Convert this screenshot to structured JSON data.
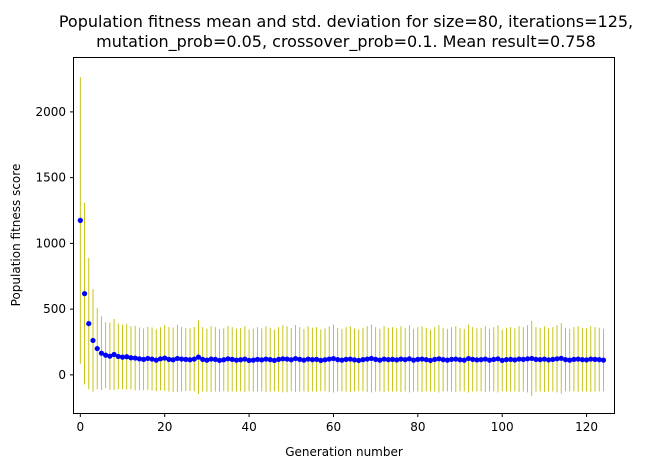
{
  "chart_data": {
    "type": "scatter",
    "title_lines": [
      "Population fitness mean and std. deviation for size=80, iterations=125,",
      "mutation_prob=0.05, crossover_prob=0.1. Mean result=0.758"
    ],
    "xlabel": "Generation number",
    "ylabel": "Population fitness score",
    "xlim": [
      -1.5,
      126.5
    ],
    "ylim": [
      -290,
      2410
    ],
    "xticks": [
      0,
      20,
      40,
      60,
      80,
      100,
      120
    ],
    "yticks": [
      0,
      500,
      1000,
      1500,
      2000
    ],
    "grid": false,
    "legend": "none",
    "colors": {
      "mean": "#0000ff",
      "errorbar": "#bfbf00"
    },
    "series": [
      {
        "kind": "mean-with-std",
        "x": [
          0,
          1,
          2,
          3,
          4,
          5,
          6,
          7,
          8,
          9,
          10,
          11,
          12,
          13,
          14,
          15,
          16,
          17,
          18,
          19,
          20,
          21,
          22,
          23,
          24,
          25,
          26,
          27,
          28,
          29,
          30,
          31,
          32,
          33,
          34,
          35,
          36,
          37,
          38,
          39,
          40,
          41,
          42,
          43,
          44,
          45,
          46,
          47,
          48,
          49,
          50,
          51,
          52,
          53,
          54,
          55,
          56,
          57,
          58,
          59,
          60,
          61,
          62,
          63,
          64,
          65,
          66,
          67,
          68,
          69,
          70,
          71,
          72,
          73,
          74,
          75,
          76,
          77,
          78,
          79,
          80,
          81,
          82,
          83,
          84,
          85,
          86,
          87,
          88,
          89,
          90,
          91,
          92,
          93,
          94,
          95,
          96,
          97,
          98,
          99,
          100,
          101,
          102,
          103,
          104,
          105,
          106,
          107,
          108,
          109,
          110,
          111,
          112,
          113,
          114,
          115,
          116,
          117,
          118,
          119,
          120,
          121,
          122,
          123,
          124
        ],
        "mean": [
          1175,
          618,
          390,
          262,
          200,
          165,
          150,
          142,
          155,
          140,
          135,
          138,
          130,
          128,
          122,
          118,
          125,
          120,
          112,
          122,
          128,
          118,
          115,
          125,
          120,
          118,
          115,
          120,
          135,
          118,
          112,
          120,
          118,
          110,
          115,
          122,
          118,
          112,
          115,
          120,
          110,
          112,
          118,
          114,
          120,
          116,
          110,
          118,
          122,
          120,
          115,
          124,
          118,
          112,
          120,
          116,
          118,
          110,
          115,
          120,
          124,
          116,
          112,
          118,
          120,
          114,
          110,
          116,
          120,
          125,
          118,
          112,
          120,
          116,
          118,
          114,
          120,
          116,
          122,
          112,
          118,
          120,
          116,
          110,
          118,
          122,
          116,
          112,
          118,
          120,
          115,
          112,
          124,
          118,
          114,
          116,
          120,
          112,
          118,
          122,
          110,
          116,
          118,
          114,
          120,
          118,
          122,
          125,
          118,
          116,
          120,
          114,
          118,
          122,
          126,
          116,
          112,
          118,
          120,
          116,
          114,
          120,
          118,
          116,
          112
        ],
        "std": [
          1090,
          690,
          500,
          390,
          310,
          280,
          250,
          255,
          270,
          250,
          245,
          250,
          240,
          245,
          238,
          235,
          240,
          240,
          235,
          240,
          250,
          245,
          245,
          255,
          245,
          240,
          238,
          245,
          280,
          245,
          240,
          250,
          245,
          238,
          240,
          250,
          245,
          238,
          240,
          250,
          235,
          240,
          245,
          240,
          250,
          242,
          235,
          245,
          255,
          250,
          240,
          255,
          245,
          238,
          250,
          242,
          245,
          235,
          240,
          250,
          258,
          242,
          238,
          245,
          250,
          240,
          235,
          242,
          250,
          258,
          245,
          238,
          250,
          242,
          245,
          240,
          250,
          242,
          255,
          238,
          245,
          250,
          242,
          235,
          245,
          255,
          242,
          238,
          245,
          250,
          240,
          238,
          258,
          245,
          240,
          242,
          250,
          238,
          245,
          255,
          235,
          242,
          245,
          240,
          250,
          245,
          255,
          285,
          245,
          242,
          250,
          240,
          245,
          255,
          268,
          242,
          238,
          245,
          250,
          242,
          240,
          250,
          245,
          242,
          238
        ]
      }
    ]
  }
}
